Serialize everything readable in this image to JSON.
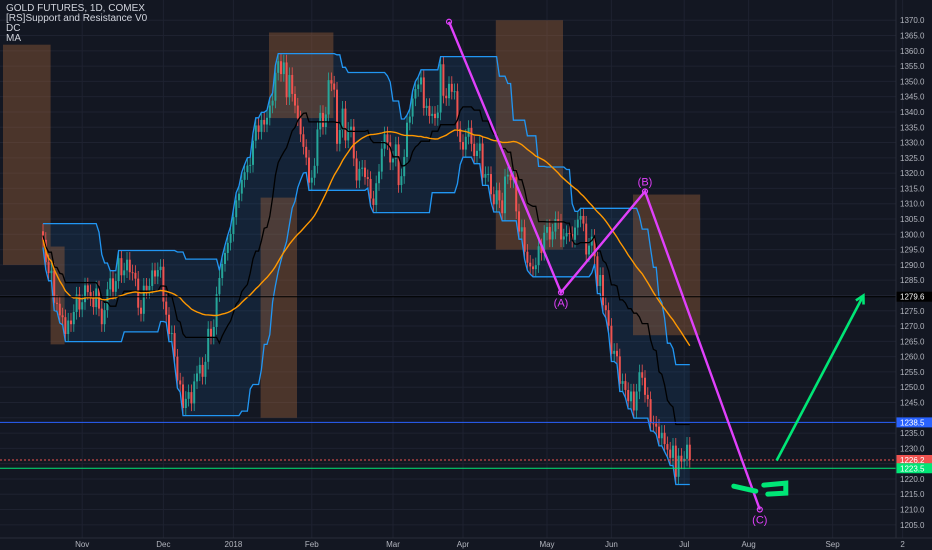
{
  "header": {
    "symbol_line": "GOLD FUTURES, 1D, COMEX",
    "indicator_1": "[RS]Support and Resistance V0",
    "indicator_2": "DC",
    "indicator_3": "MA"
  },
  "colors": {
    "background": "#131722",
    "bull_candle": "#26a69a",
    "bear_candle": "#ef5350",
    "donchian_upper_lower": "#2196f3",
    "donchian_mid": "#000000",
    "moving_average": "#ff9800",
    "resistance_line": "#e91e63",
    "support_line": "#00e676",
    "wave_line": "#e040fb",
    "projection_arrow": "#00e676",
    "blue_level": "#2962ff",
    "price_tag_red": "#ef5350"
  },
  "chart_data": {
    "type": "candlestick",
    "title": "GOLD FUTURES, 1D, COMEX",
    "x_axis_ticks": [
      "Nov",
      "Dec",
      "2018",
      "Feb",
      "Mar",
      "Apr",
      "May",
      "Jun",
      "Jul",
      "Aug",
      "Sep",
      "2"
    ],
    "y_axis_ticks": [
      1205,
      1210,
      1215,
      1220,
      1225,
      1230,
      1235,
      1240,
      1245,
      1250,
      1255,
      1260,
      1265,
      1270,
      1275,
      1280,
      1285,
      1290,
      1295,
      1300,
      1305,
      1310,
      1315,
      1320,
      1325,
      1330,
      1335,
      1340,
      1345,
      1350,
      1355,
      1360,
      1365,
      1370
    ],
    "y_range": [
      1202,
      1374
    ],
    "horizontal_levels": [
      {
        "value": 1279.6,
        "label": "1279.6",
        "color": "#000000"
      },
      {
        "value": 1238.5,
        "label": "1238.5",
        "color": "#2962ff"
      },
      {
        "value": 1226.2,
        "label": "1226.2",
        "color": "#ef5350"
      },
      {
        "value": 1223.5,
        "label": "1223.5",
        "color": "#00e676"
      }
    ],
    "wave_points": [
      {
        "label": "",
        "date_index": 145,
        "price": 1369.5
      },
      {
        "label": "(A)",
        "date_index": 185,
        "price": 1281
      },
      {
        "label": "(B)",
        "date_index": 215,
        "price": 1314
      },
      {
        "label": "(C)",
        "date_index": 256,
        "price": 1210
      }
    ],
    "projection": {
      "from": {
        "date_index": 262,
        "price": 1226
      },
      "to": {
        "date_index": 293,
        "price": 1280
      }
    },
    "series": [
      {
        "type": "candles",
        "open": [
          1301,
          1298.2,
          1290.9,
          1287.3,
          1288.1,
          1277.6,
          1277.3,
          1273.5,
          1272.9,
          1267.4,
          1271.8,
          1270.6,
          1274.6,
          1280.3,
          1275.4,
          1277.8,
          1283.3,
          1281.1,
          1279,
          1276.2,
          1282.3,
          1275.7,
          1270.6,
          1275.2,
          1282,
          1285.6,
          1281.2,
          1284.7,
          1292.2,
          1286.6,
          1288.2,
          1291.7,
          1287.6,
          1287.4,
          1285.5,
          1276,
          1274,
          1283.2,
          1281.5,
          1283.1,
          1288.2,
          1286.2,
          1288.3,
          1289.4,
          1278,
          1273.7,
          1267.4,
          1267.7,
          1260,
          1252.2,
          1250.9,
          1243.2,
          1246.2,
          1248.4,
          1244.7,
          1251.9,
          1254.5,
          1257.3,
          1253.4,
          1258.3,
          1269.1,
          1266.5,
          1269.7,
          1280.4,
          1285.7,
          1290.3,
          1293.9,
          1297.2,
          1300.1,
          1305.6,
          1311.1,
          1313.3,
          1317.8,
          1320.3,
          1322.5,
          1322.7,
          1330.6,
          1335.6,
          1333.5,
          1337.4,
          1335.9,
          1338.1,
          1342.1,
          1343.7,
          1352.8,
          1356.6,
          1352.4,
          1356.2,
          1344.8,
          1352.1,
          1345.9,
          1342.1,
          1337.9,
          1332.7,
          1328.6,
          1325.1,
          1316.9,
          1318.5,
          1322.4,
          1334.3,
          1339.7,
          1335.1,
          1339.2,
          1350.4,
          1349.3,
          1347.3,
          1329.6,
          1334.1,
          1341.1,
          1330.7,
          1334.2,
          1335.2,
          1324.8,
          1317.6,
          1321.4,
          1321.8,
          1318.7,
          1318.1,
          1311.7,
          1309.6,
          1316.7,
          1320.5,
          1328,
          1332.7,
          1330.1,
          1323.5,
          1324.7,
          1329.4,
          1316.1,
          1319,
          1325.3,
          1336.5,
          1338.5,
          1344.4,
          1347.5,
          1349,
          1351.3,
          1341.3,
          1342,
          1338.7,
          1339.4,
          1338,
          1339.8,
          1355.6,
          1345.3,
          1344.5,
          1349.2,
          1346.6,
          1346.8,
          1334.5,
          1330.2,
          1327.7,
          1331.9,
          1334.8,
          1329.6,
          1325.6,
          1327.3,
          1329.7,
          1318.5,
          1319.7,
          1319.7,
          1313.1,
          1309.8,
          1314.4,
          1311.1,
          1306.9,
          1318.9,
          1319.5,
          1317.7,
          1318.7,
          1307.5,
          1300.9,
          1302.3,
          1294.3,
          1290.7,
          1289.5,
          1288.6,
          1289.9,
          1296.1,
          1293.9,
          1300.5,
          1302.4,
          1298.3,
          1300.9,
          1305,
          1304.2,
          1298.3,
          1299.3,
          1300.4,
          1300.1,
          1298.2,
          1302.2,
          1304.8,
          1306,
          1303.5,
          1293.4,
          1296.3,
          1299.2,
          1292.8,
          1283.1,
          1286.7,
          1276.8,
          1275.2,
          1270.1,
          1260.9,
          1261.9,
          1260.1,
          1251.1,
          1252,
          1249.1,
          1245.4,
          1248.6,
          1242.4,
          1248.6,
          1254.9,
          1253.1,
          1247.5,
          1246.1,
          1238.2,
          1238.1,
          1237.1,
          1233.3,
          1235.1,
          1231.4,
          1229.6,
          1226.9,
          1230.9,
          1220.7,
          1227.6,
          1225.7,
          1226.6,
          1231.2
        ],
        "close": [
          1298.2,
          1290.9,
          1287.3,
          1288.1,
          1277.6,
          1277.3,
          1273.5,
          1272.9,
          1267.4,
          1271.8,
          1270.6,
          1274.6,
          1280.3,
          1275.4,
          1277.8,
          1283.3,
          1281.1,
          1279,
          1276.2,
          1282.3,
          1275.7,
          1270.6,
          1275.2,
          1282,
          1285.6,
          1281.2,
          1284.7,
          1292.2,
          1286.6,
          1288.2,
          1291.7,
          1287.6,
          1287.4,
          1285.5,
          1276,
          1274,
          1283.2,
          1281.5,
          1283.1,
          1288.2,
          1286.2,
          1288.3,
          1289.4,
          1278,
          1273.7,
          1267.4,
          1267.7,
          1260,
          1252.2,
          1250.9,
          1243.2,
          1246.2,
          1248.4,
          1244.7,
          1251.9,
          1254.5,
          1257.3,
          1253.4,
          1258.3,
          1269.1,
          1266.5,
          1269.7,
          1280.4,
          1285.7,
          1290.3,
          1293.9,
          1297.2,
          1300.1,
          1305.6,
          1311.1,
          1313.3,
          1317.8,
          1320.3,
          1322.5,
          1322.7,
          1330.6,
          1335.6,
          1333.5,
          1337.4,
          1335.9,
          1338.1,
          1342.1,
          1343.7,
          1352.8,
          1356.6,
          1352.4,
          1356.2,
          1344.8,
          1352.1,
          1345.9,
          1342.1,
          1337.9,
          1332.7,
          1328.6,
          1325.1,
          1316.9,
          1318.5,
          1322.4,
          1334.3,
          1339.7,
          1335.1,
          1339.2,
          1350.4,
          1349.3,
          1347.3,
          1329.6,
          1334.1,
          1341.1,
          1330.7,
          1334.2,
          1335.2,
          1324.8,
          1317.6,
          1321.4,
          1321.8,
          1318.7,
          1318.1,
          1311.7,
          1309.6,
          1316.7,
          1320.5,
          1328,
          1332.7,
          1330.1,
          1323.5,
          1324.7,
          1329.4,
          1316.1,
          1319,
          1325.3,
          1336.5,
          1338.5,
          1344.4,
          1347.5,
          1349,
          1351.3,
          1341.3,
          1342,
          1338.7,
          1339.4,
          1338,
          1339.8,
          1355.6,
          1345.3,
          1344.5,
          1349.2,
          1346.6,
          1346.8,
          1334.5,
          1330.2,
          1327.7,
          1331.9,
          1334.8,
          1329.6,
          1325.6,
          1327.3,
          1329.7,
          1318.5,
          1319.7,
          1319.7,
          1313.1,
          1309.8,
          1314.4,
          1311.1,
          1306.9,
          1318.9,
          1319.5,
          1317.7,
          1318.7,
          1307.5,
          1300.9,
          1302.3,
          1294.3,
          1290.7,
          1289.5,
          1288.6,
          1289.9,
          1296.1,
          1293.9,
          1300.5,
          1302.4,
          1298.3,
          1300.9,
          1305,
          1304.2,
          1298.3,
          1299.3,
          1300.4,
          1300.1,
          1298.2,
          1302.2,
          1304.8,
          1306,
          1303.5,
          1293.4,
          1296.3,
          1299.2,
          1292.8,
          1283.1,
          1286.7,
          1276.8,
          1275.2,
          1270.1,
          1260.9,
          1261.9,
          1260.1,
          1251.1,
          1252,
          1249.1,
          1245.4,
          1248.6,
          1242.4,
          1248.6,
          1254.9,
          1253.1,
          1247.5,
          1246.1,
          1238.2,
          1238.1,
          1237.1,
          1233.3,
          1235.1,
          1231.4,
          1229.6,
          1226.9,
          1230.9,
          1220.7,
          1227.6,
          1225.7,
          1226.6,
          1231.2,
          1226.2
        ]
      },
      {
        "name": "MA",
        "type": "line"
      }
    ]
  }
}
